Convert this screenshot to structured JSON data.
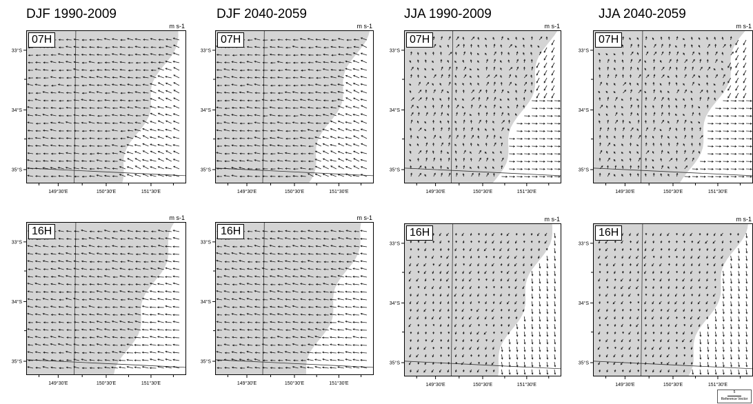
{
  "column_titles": [
    "DJF 1990-2009",
    "DJF 2040-2059",
    "JJA 1990-2009",
    "JJA 2040-2059"
  ],
  "unit_label": "m s-1",
  "lat_labels": [
    "33°S",
    "34°S",
    "35°S"
  ],
  "lon_labels": [
    "149°30'E",
    "150°30'E",
    "151°30'E"
  ],
  "panels": [
    {
      "season": "DJF 1990-2009",
      "time": "07H"
    },
    {
      "season": "DJF 2040-2059",
      "time": "07H"
    },
    {
      "season": "JJA 1990-2009",
      "time": "07H"
    },
    {
      "season": "JJA 2040-2059",
      "time": "07H"
    },
    {
      "season": "DJF 1990-2009",
      "time": "16H"
    },
    {
      "season": "DJF 2040-2059",
      "time": "16H"
    },
    {
      "season": "JJA 1990-2009",
      "time": "16H"
    },
    {
      "season": "JJA 2040-2059",
      "time": "16H"
    }
  ],
  "reference_vector": {
    "value": "5",
    "label": "Reference Vector"
  },
  "colors": {
    "land": "#d4d4d4",
    "ocean": "#ffffff",
    "vector": "#1a1a1a",
    "border": "#000000"
  }
}
